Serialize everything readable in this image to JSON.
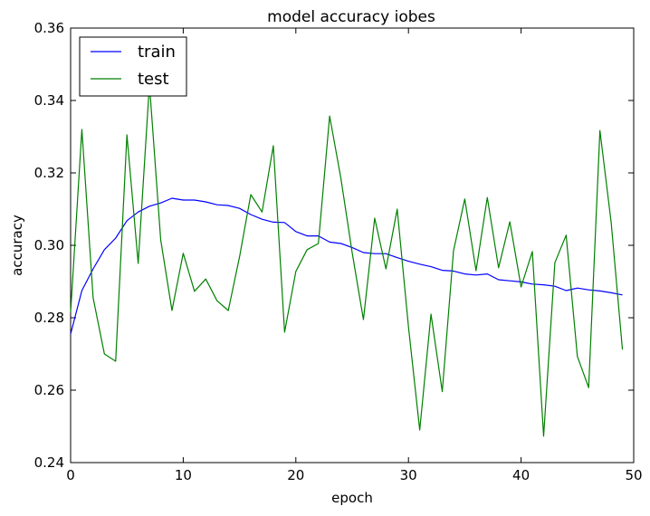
{
  "chart_data": {
    "type": "line",
    "title": "model accuracy iobes",
    "xlabel": "epoch",
    "ylabel": "accuracy",
    "xlim": [
      0,
      50
    ],
    "ylim": [
      0.24,
      0.36
    ],
    "xticks": [
      0,
      10,
      20,
      30,
      40,
      50
    ],
    "xtick_labels": [
      "0",
      "10",
      "20",
      "30",
      "40",
      "50"
    ],
    "yticks": [
      0.24,
      0.26,
      0.28,
      0.3,
      0.32,
      0.34,
      0.36
    ],
    "ytick_labels": [
      "0.24",
      "0.26",
      "0.28",
      "0.30",
      "0.32",
      "0.34",
      "0.36"
    ],
    "grid": false,
    "legend_position": "top-left",
    "x": [
      0,
      1,
      2,
      3,
      4,
      5,
      6,
      7,
      8,
      9,
      10,
      11,
      12,
      13,
      14,
      15,
      16,
      17,
      18,
      19,
      20,
      21,
      22,
      23,
      24,
      25,
      26,
      27,
      28,
      29,
      30,
      31,
      32,
      33,
      34,
      35,
      36,
      37,
      38,
      39,
      40,
      41,
      42,
      43,
      44,
      45,
      46,
      47,
      48,
      49
    ],
    "series": [
      {
        "name": "train",
        "color": "#0000ff",
        "values": [
          0.2755,
          0.2875,
          0.2935,
          0.2988,
          0.302,
          0.3068,
          0.3092,
          0.3108,
          0.3117,
          0.313,
          0.3125,
          0.3125,
          0.312,
          0.3112,
          0.311,
          0.3102,
          0.3085,
          0.3072,
          0.3064,
          0.3063,
          0.3038,
          0.3026,
          0.3026,
          0.3009,
          0.3005,
          0.2994,
          0.298,
          0.2977,
          0.2977,
          0.2966,
          0.2956,
          0.2948,
          0.2941,
          0.2931,
          0.2929,
          0.2921,
          0.2918,
          0.2921,
          0.2905,
          0.2902,
          0.2899,
          0.2893,
          0.2891,
          0.2887,
          0.2875,
          0.2882,
          0.2877,
          0.2874,
          0.2869,
          0.2863
        ]
      },
      {
        "name": "test",
        "color": "#008000",
        "values": [
          0.2815,
          0.332,
          0.2855,
          0.27,
          0.268,
          0.3305,
          0.295,
          0.3445,
          0.3015,
          0.282,
          0.2978,
          0.2873,
          0.2907,
          0.2847,
          0.282,
          0.2968,
          0.314,
          0.3092,
          0.3275,
          0.276,
          0.2928,
          0.2988,
          0.3005,
          0.3357,
          0.3185,
          0.298,
          0.2795,
          0.3075,
          0.2935,
          0.31,
          0.2775,
          0.249,
          0.281,
          0.2596,
          0.2985,
          0.3128,
          0.293,
          0.3132,
          0.2938,
          0.3065,
          0.2885,
          0.2983,
          0.2473,
          0.2952,
          0.3028,
          0.2693,
          0.2607,
          0.3317,
          0.3063,
          0.2712
        ]
      }
    ]
  }
}
